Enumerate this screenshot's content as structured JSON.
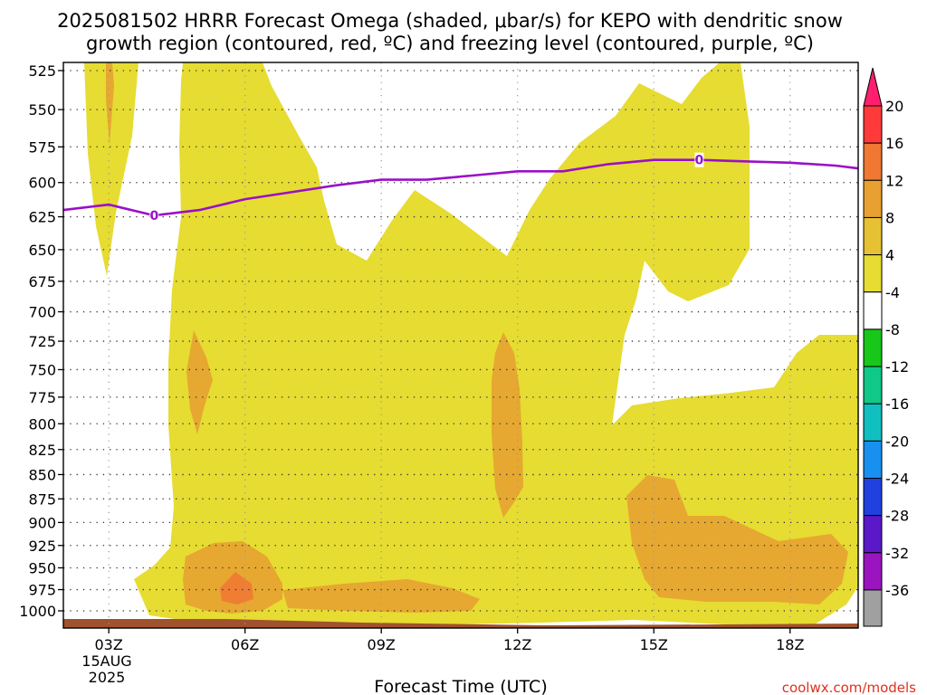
{
  "chart_data": {
    "type": "heatmap",
    "title": "2025081502 HRRR Forecast Omega (shaded, μbar/s) for KEPO with dendritic snow",
    "subtitle": "growth region (contoured, red, ºC) and freezing level (contoured, purple, ºC)",
    "xlabel": "Forecast Time (UTC)",
    "x_ticks": [
      "03Z",
      "06Z",
      "09Z",
      "12Z",
      "15Z",
      "18Z"
    ],
    "x_tick_values": [
      3,
      6,
      9,
      12,
      15,
      18
    ],
    "x_sub_labels": [
      "15AUG",
      "2025"
    ],
    "xlim": [
      2,
      19.5
    ],
    "y_ticks": [
      525,
      550,
      575,
      600,
      625,
      650,
      675,
      700,
      725,
      750,
      775,
      800,
      825,
      850,
      875,
      900,
      925,
      950,
      975,
      1000
    ],
    "ylim": [
      1015,
      520
    ],
    "y_scale": "log-pressure",
    "grid": true,
    "colorbar": {
      "labels": [
        "20",
        "16",
        "12",
        "8",
        "4",
        "-4",
        "-8",
        "-12",
        "-16",
        "-20",
        "-24",
        "-28",
        "-32",
        "-36"
      ],
      "colors": [
        "#ff1f6e",
        "#ff3a3a",
        "#f07832",
        "#e8a030",
        "#e6c233",
        "#e6dc32",
        "#ffffff",
        "#18c818",
        "#10c888",
        "#10c0c0",
        "#1890f0",
        "#2040e0",
        "#5a18c8",
        "#9a14c0",
        "#a0a0a0",
        "#000000"
      ]
    },
    "shading": {
      "level_4_8": "#e6dc32",
      "level_8_12": "#e6a830",
      "level_12_16": "#ef7e33",
      "terrain": "#a0522d"
    },
    "freezing_level": {
      "label": "0",
      "color": "#9a10c8",
      "x": [
        2,
        3,
        4,
        5,
        6,
        7,
        8,
        9,
        10,
        11,
        12,
        13,
        14,
        15,
        16,
        17,
        18,
        19,
        19.5
      ],
      "y": [
        620,
        616,
        624,
        620,
        612,
        607,
        602,
        598,
        598,
        595,
        592,
        592,
        587,
        584,
        584,
        585,
        586,
        588,
        590
      ],
      "label_x": [
        4,
        16
      ]
    },
    "credit": "coolwx.com/models"
  }
}
